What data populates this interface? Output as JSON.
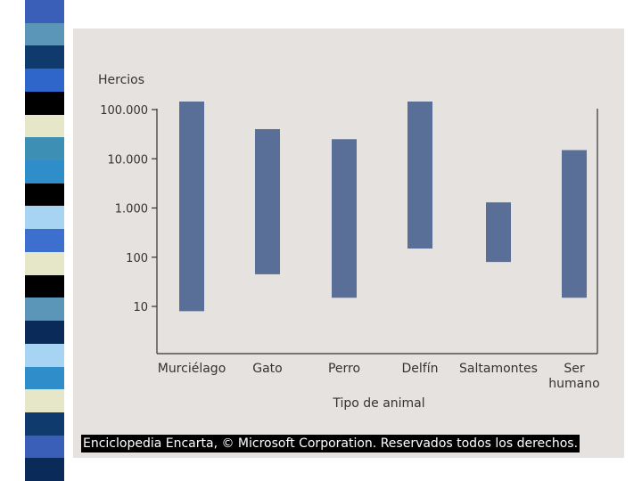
{
  "decor": {
    "stripe_colors": [
      "#3a5fb8",
      "#5b96b8",
      "#0f3a6e",
      "#2f66c9",
      "#000000",
      "#e6e6c8",
      "#3e8fb4",
      "#2f8ec9",
      "#000000",
      "#a6d4f2",
      "#3d6fce",
      "#e6e6c8",
      "#000000",
      "#5b96b8",
      "#0a2a5a",
      "#a6d4f2",
      "#2f8ec9",
      "#e6e6c8",
      "#0f3a6e",
      "#3a5fb8",
      "#0a2a5a"
    ]
  },
  "chart_data": {
    "type": "bar",
    "subtype": "floating-range",
    "title": "",
    "ylabel": "Hercios",
    "xlabel": "Tipo de animal",
    "yscale": "log",
    "ylim": [
      1,
      150000
    ],
    "yticks": [
      {
        "value": 10,
        "label": "10"
      },
      {
        "value": 100,
        "label": "100"
      },
      {
        "value": 1000,
        "label": "1.000"
      },
      {
        "value": 10000,
        "label": "10.000"
      },
      {
        "value": 100000,
        "label": "100.000"
      }
    ],
    "categories": [
      {
        "label": [
          "Murciélago"
        ],
        "low": 8,
        "high": 150000
      },
      {
        "label": [
          "Gato"
        ],
        "low": 45,
        "high": 40000
      },
      {
        "label": [
          "Perro"
        ],
        "low": 15,
        "high": 25000
      },
      {
        "label": [
          "Delfín"
        ],
        "low": 150,
        "high": 150000
      },
      {
        "label": [
          "Saltamontes"
        ],
        "low": 80,
        "high": 1300
      },
      {
        "label": [
          "Ser",
          "humano"
        ],
        "low": 15,
        "high": 15000
      }
    ],
    "bar_color": "#5a6f98",
    "grid": false
  },
  "credit": "Enciclopedia Encarta, © Microsoft Corporation. Reservados todos los derechos."
}
